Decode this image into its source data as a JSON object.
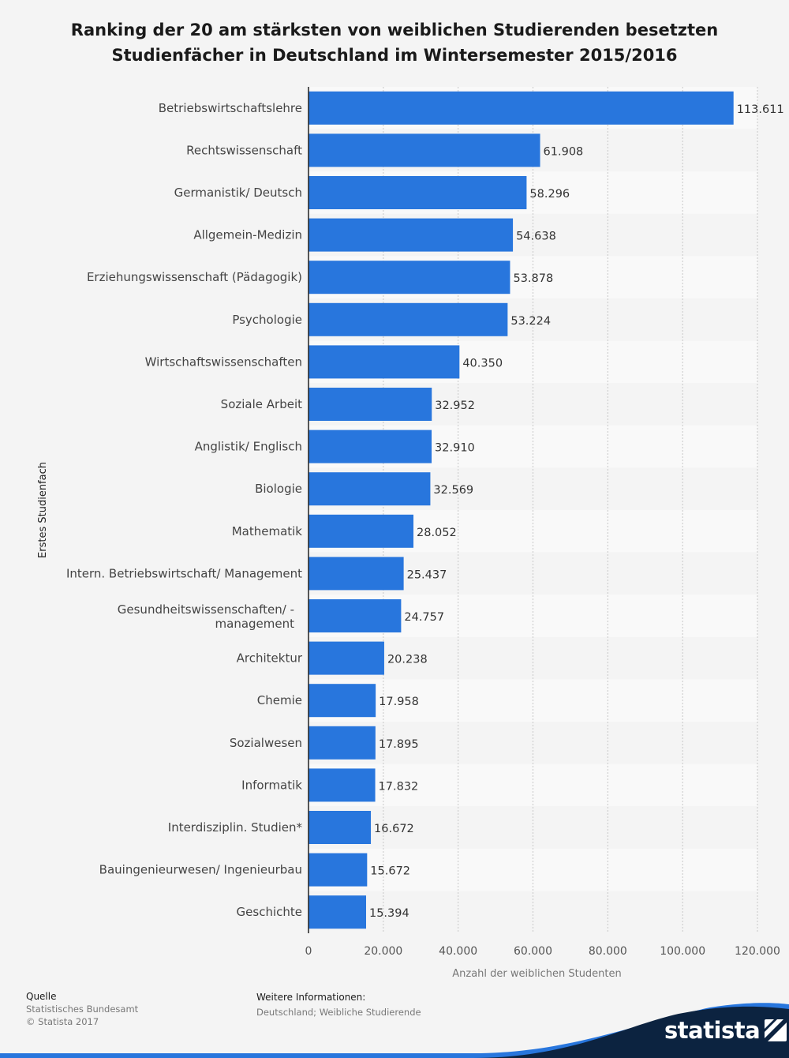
{
  "title": "Ranking der 20 am stärksten von weiblichen Studierenden besetzten Studienfächer in Deutschland im Wintersemester 2015/2016",
  "chart_data": {
    "type": "bar",
    "orientation": "horizontal",
    "categories": [
      "Betriebswirtschaftslehre",
      "Rechtswissenschaft",
      "Germanistik/ Deutsch",
      "Allgemein-Medizin",
      "Erziehungswissenschaft (Pädagogik)",
      "Psychologie",
      "Wirtschaftswissenschaften",
      "Soziale Arbeit",
      "Anglistik/ Englisch",
      "Biologie",
      "Mathematik",
      "Intern. Betriebswirtschaft/ Management",
      "Gesundheitswissenschaften/ -management",
      "Architektur",
      "Chemie",
      "Sozialwesen",
      "Informatik",
      "Interdisziplin. Studien*",
      "Bauingenieurwesen/ Ingenieurbau",
      "Geschichte"
    ],
    "category_lines": {
      "12": [
        "Gesundheitswissenschaften/ -",
        "management"
      ]
    },
    "values": [
      113611,
      61908,
      58296,
      54638,
      53878,
      53224,
      40350,
      32952,
      32910,
      32569,
      28052,
      25437,
      24757,
      20238,
      17958,
      17895,
      17832,
      16672,
      15672,
      15394
    ],
    "value_labels": [
      "113.611",
      "61.908",
      "58.296",
      "54.638",
      "53.878",
      "53.224",
      "40.350",
      "32.952",
      "32.910",
      "32.569",
      "28.052",
      "25.437",
      "24.757",
      "20.238",
      "17.958",
      "17.895",
      "17.832",
      "16.672",
      "15.672",
      "15.394"
    ],
    "xlim": [
      0,
      120000
    ],
    "xticks": [
      0,
      20000,
      40000,
      60000,
      80000,
      100000,
      120000
    ],
    "xtick_labels": [
      "0",
      "20.000",
      "40.000",
      "60.000",
      "80.000",
      "100.000",
      "120.000"
    ],
    "xlabel": "Anzahl der weiblichen Studenten",
    "ylabel": "Erstes Studienfach",
    "grid": true,
    "bar_color": "#2876dd"
  },
  "footer": {
    "source_heading": "Quelle",
    "source_lines": [
      "Statistisches Bundesamt",
      "© Statista 2017"
    ],
    "info_heading": "Weitere Informationen:",
    "info_text": "Deutschland; Weibliche Studierende",
    "brand": "statista"
  },
  "colors": {
    "background": "#f4f4f4",
    "stripe": "#f9f9f9",
    "brand_dark": "#0c2340",
    "brand_blue": "#2876dd"
  }
}
